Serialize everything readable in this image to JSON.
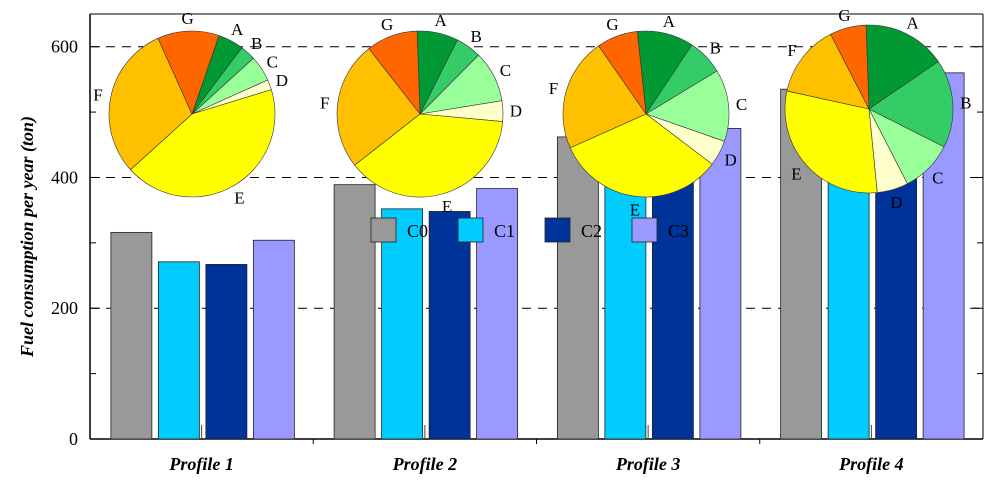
{
  "chart_data": [
    {
      "type": "bar",
      "title": "",
      "xlabel": "",
      "ylabel": "Fuel consumption per year (ton)",
      "ylim": [
        0,
        650
      ],
      "yticks": [
        0,
        200,
        400,
        600
      ],
      "grid": "horizontal dashed",
      "legend_placement": "top-center",
      "categories": [
        "Profile 1",
        "Profile 2",
        "Profile 3",
        "Profile 4"
      ],
      "series": [
        {
          "name": "C0",
          "color": "#999999",
          "values": [
            316,
            389,
            462,
            535
          ]
        },
        {
          "name": "C1",
          "color": "#00ccff",
          "values": [
            271,
            352,
            436,
            518
          ]
        },
        {
          "name": "C2",
          "color": "#003399",
          "values": [
            267,
            348,
            430,
            507
          ]
        },
        {
          "name": "C3",
          "color": "#9999ff",
          "values": [
            304,
            383,
            475,
            560
          ]
        }
      ]
    },
    {
      "type": "pie",
      "title": "Profile 1",
      "labels": [
        "A",
        "B",
        "C",
        "D",
        "E",
        "F",
        "G"
      ],
      "colors": [
        "#009933",
        "#33cc66",
        "#99ff99",
        "#ffffcc",
        "#ffff00",
        "#ffc000",
        "#ff6600"
      ],
      "values": [
        5,
        3,
        5,
        2,
        43,
        30,
        12
      ]
    },
    {
      "type": "pie",
      "title": "Profile 2",
      "labels": [
        "A",
        "B",
        "C",
        "D",
        "E",
        "F",
        "G"
      ],
      "colors": [
        "#009933",
        "#33cc66",
        "#99ff99",
        "#ffffcc",
        "#ffff00",
        "#ffc000",
        "#ff6600"
      ],
      "values": [
        8,
        5,
        10,
        4,
        38,
        25,
        10
      ]
    },
    {
      "type": "pie",
      "title": "Profile 3",
      "labels": [
        "A",
        "B",
        "C",
        "D",
        "E",
        "F",
        "G"
      ],
      "colors": [
        "#009933",
        "#33cc66",
        "#99ff99",
        "#ffffcc",
        "#ffff00",
        "#ffc000",
        "#ff6600"
      ],
      "values": [
        11,
        7,
        14,
        5,
        33,
        22,
        8
      ]
    },
    {
      "type": "pie",
      "title": "Profile 4",
      "labels": [
        "A",
        "B",
        "C",
        "D",
        "E",
        "F",
        "G"
      ],
      "colors": [
        "#009933",
        "#33cc66",
        "#99ff99",
        "#ffffcc",
        "#ffff00",
        "#ffc000",
        "#ff6600"
      ],
      "values": [
        16,
        17,
        10,
        6,
        30,
        14,
        7
      ]
    }
  ]
}
